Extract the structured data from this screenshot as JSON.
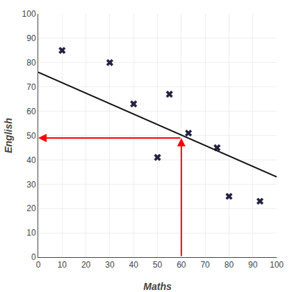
{
  "chart_data": {
    "type": "scatter",
    "xlabel": "Maths",
    "ylabel": "English",
    "xlim": [
      0,
      100
    ],
    "ylim": [
      0,
      100
    ],
    "xticks": [
      0,
      10,
      20,
      30,
      40,
      50,
      60,
      70,
      80,
      90,
      100
    ],
    "yticks": [
      0,
      10,
      20,
      30,
      40,
      50,
      60,
      70,
      80,
      90,
      100
    ],
    "grid": true,
    "series": [
      {
        "type": "scatter",
        "marker": "x",
        "color": "#222244",
        "x": [
          10,
          30,
          40,
          50,
          55,
          63,
          75,
          80,
          93
        ],
        "values": [
          85,
          80,
          63,
          41,
          67,
          51,
          45,
          25,
          23
        ]
      },
      {
        "type": "line",
        "color": "#111111",
        "x": [
          0,
          100
        ],
        "values": [
          76,
          33
        ]
      },
      {
        "type": "arrow",
        "color": "red",
        "x": [
          60,
          60
        ],
        "values": [
          0,
          49
        ]
      },
      {
        "type": "arrow",
        "color": "red",
        "x": [
          60,
          0
        ],
        "values": [
          49,
          49
        ]
      }
    ]
  }
}
